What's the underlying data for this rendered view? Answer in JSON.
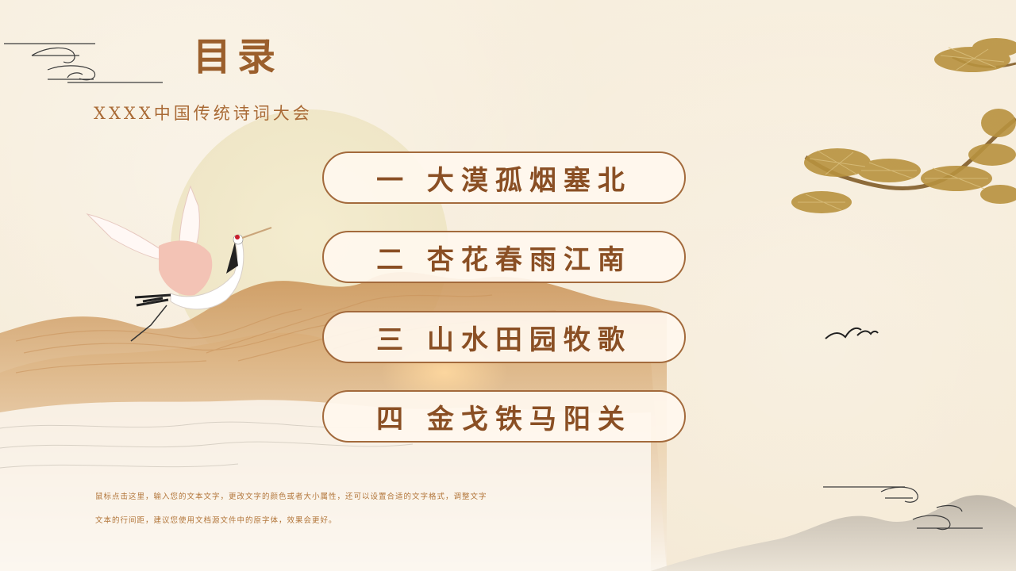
{
  "header": {
    "title": "目录",
    "subtitle": "XXXX中国传统诗词大会"
  },
  "menu": [
    {
      "label": "一 大漠孤烟塞北"
    },
    {
      "label": "二 杏花春雨江南"
    },
    {
      "label": "三 山水田园牧歌"
    },
    {
      "label": "四 金戈铁马阳关"
    }
  ],
  "note": {
    "line1": "鼠标点击这里，输入您的文本文字，更改文字的颜色或者大小属性，还可以设置合适的文字格式，调整文字",
    "line2": "文本的行间距，建议您使用文档源文件中的原字体，效果会更好。"
  },
  "colors": {
    "background": "#f6ecd9",
    "accent": "#9b5f2c",
    "border": "#a36a3c"
  },
  "decor": [
    "cloud-swirl-icon",
    "crane-illustration",
    "pine-branch-illustration",
    "birds-icon",
    "mountain-waves-illustration"
  ]
}
